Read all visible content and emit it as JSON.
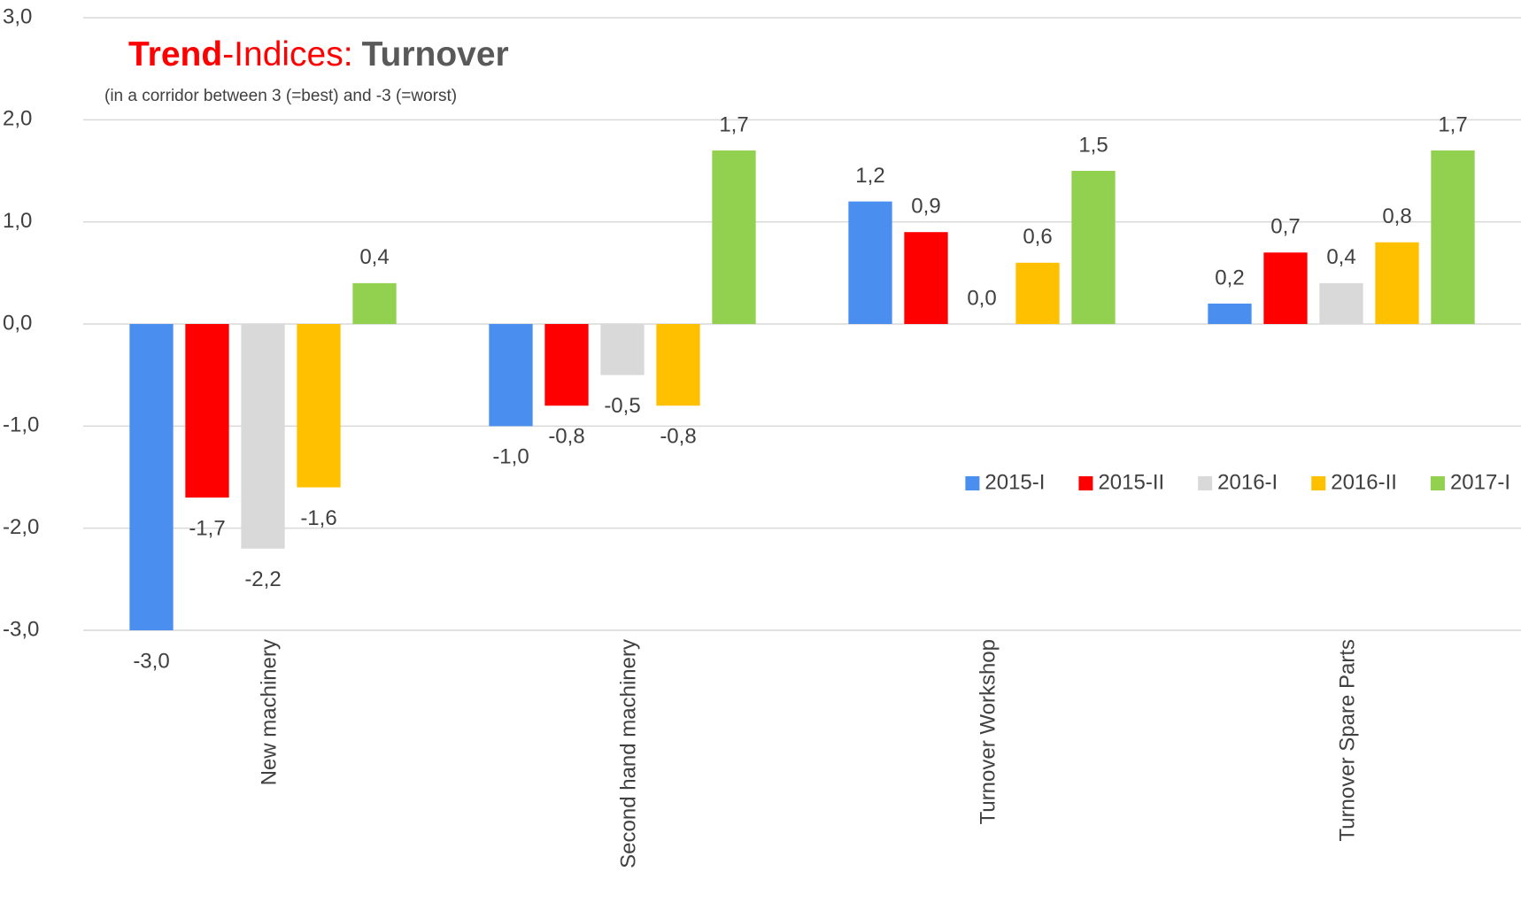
{
  "chart_data": {
    "type": "bar",
    "title": [
      "Trend",
      "-Indices:",
      "Turnover"
    ],
    "subtitle": "(in a corridor between 3 (=best) and -3 (=worst)",
    "categories": [
      "New machinery",
      "Second hand machinery",
      "Turnover Workshop",
      "Turnover Spare Parts"
    ],
    "series": [
      {
        "name": "2015-I",
        "color": "#4a8ff0",
        "values": [
          -3.0,
          -1.0,
          1.2,
          0.2
        ],
        "value_labels": [
          "-3,0",
          "-1,0",
          "1,2",
          "0,2"
        ]
      },
      {
        "name": "2015-II",
        "color": "#ff0000",
        "values": [
          -1.7,
          -0.8,
          0.9,
          0.7
        ],
        "value_labels": [
          "-1,7",
          "-0,8",
          "0,9",
          "0,7"
        ]
      },
      {
        "name": "2016-I",
        "color": "#d9d9d9",
        "values": [
          -2.2,
          -0.5,
          0.0,
          0.4
        ],
        "value_labels": [
          "-2,2",
          "-0,5",
          "0,0",
          "0,4"
        ]
      },
      {
        "name": "2016-II",
        "color": "#ffc000",
        "values": [
          -1.6,
          -0.8,
          0.6,
          0.8
        ],
        "value_labels": [
          "-1,6",
          "-0,8",
          "0,6",
          "0,8"
        ]
      },
      {
        "name": "2017-I",
        "color": "#92d050",
        "values": [
          0.4,
          1.7,
          1.5,
          1.7
        ],
        "value_labels": [
          "0,4",
          "1,7",
          "1,5",
          "1,7"
        ]
      }
    ],
    "ylim": [
      -3,
      3
    ],
    "yticks": [
      {
        "value": -3,
        "label": "-3,0"
      },
      {
        "value": -2,
        "label": "-2,0"
      },
      {
        "value": -1,
        "label": "-1,0"
      },
      {
        "value": 0,
        "label": "0,0"
      },
      {
        "value": 1,
        "label": "1,0"
      },
      {
        "value": 2,
        "label": "2,0"
      },
      {
        "value": 3,
        "label": "3,0"
      }
    ],
    "grid": true,
    "legend": "right"
  }
}
